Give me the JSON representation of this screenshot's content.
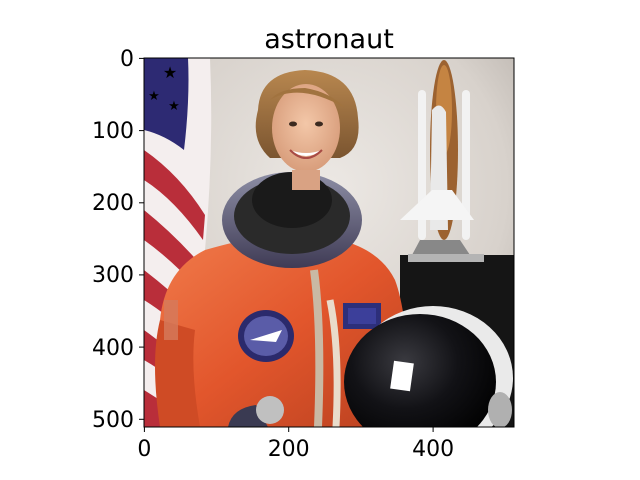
{
  "chart_data": {
    "type": "image",
    "title": "astronaut",
    "image_size": [
      512,
      512
    ],
    "xlim": [
      0,
      512
    ],
    "ylim": [
      512,
      0
    ],
    "x_ticks": [
      0,
      200,
      400
    ],
    "y_ticks": [
      0,
      100,
      200,
      300,
      400,
      500
    ],
    "x_tick_labels": [
      "0",
      "200",
      "400"
    ],
    "y_tick_labels": [
      "0",
      "100",
      "200",
      "300",
      "400",
      "500"
    ],
    "grid": false,
    "legend": "none"
  },
  "image": {
    "subject": "astronaut portrait",
    "elements": [
      "american-flag",
      "space-shuttle",
      "orange-flight-suit",
      "helmet",
      "mission-patch",
      "name-patch"
    ]
  },
  "colors": {
    "suit": "#e2562c",
    "backdrop": "#d9d3ce",
    "flag_blue": "#2d2a73",
    "flag_red": "#b92e3a",
    "helmet": "#0f0f12"
  }
}
